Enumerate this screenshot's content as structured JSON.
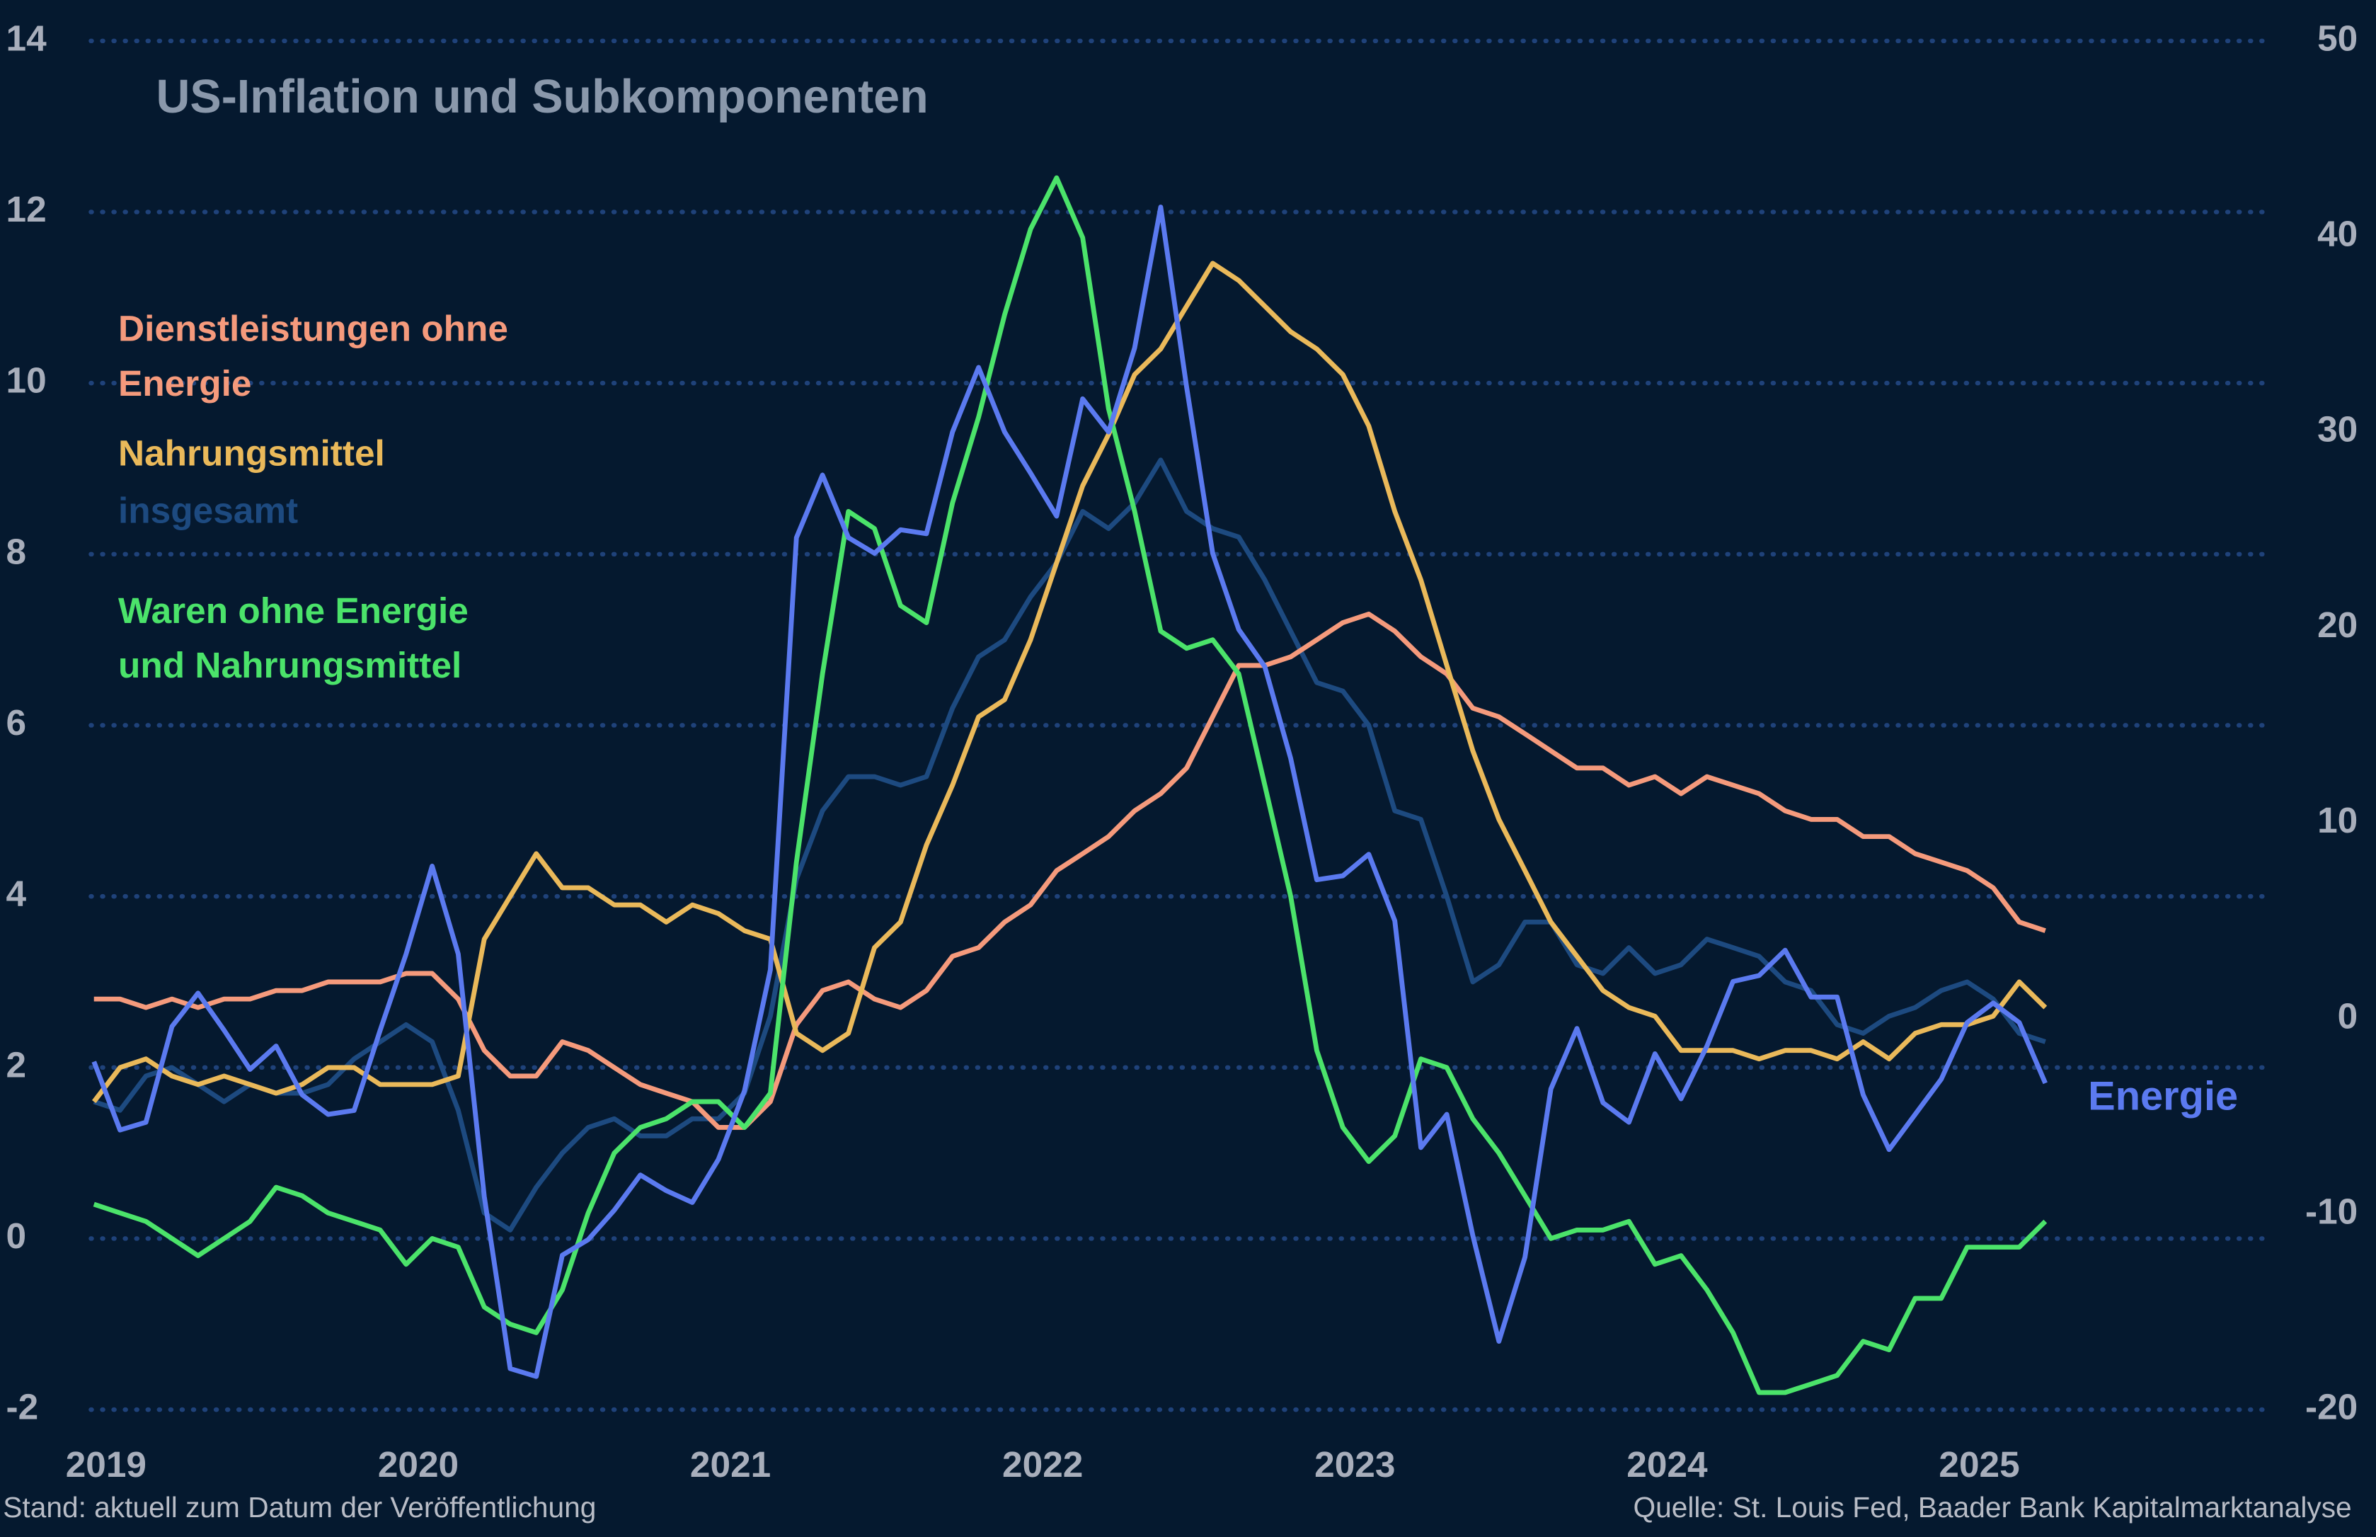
{
  "chart_data": {
    "type": "line",
    "title": "US-Inflation und Subkomponenten",
    "note": "Stand: aktuell zum Datum der Veröffentlichung",
    "source": "Quelle: St. Louis Fed, Baader Bank Kapitalmarktanalyse",
    "categories": [
      "2019",
      null,
      null,
      null,
      null,
      null,
      null,
      null,
      null,
      null,
      null,
      null,
      "2020",
      null,
      null,
      null,
      null,
      null,
      null,
      null,
      null,
      null,
      null,
      null,
      "2021",
      null,
      null,
      null,
      null,
      null,
      null,
      null,
      null,
      null,
      null,
      null,
      "2022",
      null,
      null,
      null,
      null,
      null,
      null,
      null,
      null,
      null,
      null,
      null,
      "2023",
      null,
      null,
      null,
      null,
      null,
      null,
      null,
      null,
      null,
      null,
      null,
      "2024",
      null,
      null,
      null,
      null,
      null,
      null,
      null,
      null,
      null,
      null,
      null,
      "2025",
      null,
      null,
      null
    ],
    "ylim": [
      -2,
      14
    ],
    "yticks": [
      -2,
      0,
      2,
      4,
      6,
      8,
      10,
      12,
      14
    ],
    "y2lim": [
      -20,
      50
    ],
    "y2ticks": [
      -20,
      -10,
      0,
      10,
      20,
      30,
      40,
      50
    ],
    "grid": true,
    "series": [
      {
        "name": "Dienstleistungen ohne Energie",
        "color": "#f59a7c",
        "values": [
          2.8,
          2.8,
          2.7,
          2.8,
          2.7,
          2.8,
          2.8,
          2.9,
          2.9,
          3.0,
          3.0,
          3.0,
          3.1,
          3.1,
          2.8,
          2.2,
          1.9,
          1.9,
          2.3,
          2.2,
          2.0,
          1.8,
          1.7,
          1.6,
          1.3,
          1.3,
          1.6,
          2.5,
          2.9,
          3.0,
          2.8,
          2.7,
          2.9,
          3.3,
          3.4,
          3.7,
          3.9,
          4.3,
          4.5,
          4.7,
          5.0,
          5.2,
          5.5,
          6.1,
          6.7,
          6.7,
          6.8,
          7.0,
          7.2,
          7.3,
          7.1,
          6.8,
          6.6,
          6.2,
          6.1,
          5.9,
          5.7,
          5.5,
          5.5,
          5.3,
          5.4,
          5.2,
          5.4,
          5.3,
          5.2,
          5.0,
          4.9,
          4.9,
          4.7,
          4.7,
          4.5,
          4.4,
          4.3,
          4.1,
          3.7,
          3.6
        ]
      },
      {
        "name": "Nahrungsmittel",
        "color": "#eab95a",
        "values": [
          1.6,
          2.0,
          2.1,
          1.9,
          1.8,
          1.9,
          1.8,
          1.7,
          1.8,
          2.0,
          2.0,
          1.8,
          1.8,
          1.8,
          1.9,
          3.5,
          4.0,
          4.5,
          4.1,
          4.1,
          3.9,
          3.9,
          3.7,
          3.9,
          3.8,
          3.6,
          3.5,
          2.4,
          2.2,
          2.4,
          3.4,
          3.7,
          4.6,
          5.3,
          6.1,
          6.3,
          7.0,
          7.9,
          8.8,
          9.4,
          10.1,
          10.4,
          10.9,
          11.4,
          11.2,
          10.9,
          10.6,
          10.4,
          10.1,
          9.5,
          8.5,
          7.7,
          6.7,
          5.7,
          4.9,
          4.3,
          3.7,
          3.3,
          2.9,
          2.7,
          2.6,
          2.2,
          2.2,
          2.2,
          2.1,
          2.2,
          2.2,
          2.1,
          2.3,
          2.1,
          2.4,
          2.5,
          2.5,
          2.6,
          3.0,
          2.7
        ]
      },
      {
        "name": "insgesamt",
        "color": "#1d4a80",
        "values": [
          1.6,
          1.5,
          1.9,
          2.0,
          1.8,
          1.6,
          1.8,
          1.7,
          1.7,
          1.8,
          2.1,
          2.3,
          2.5,
          2.3,
          1.5,
          0.3,
          0.1,
          0.6,
          1.0,
          1.3,
          1.4,
          1.2,
          1.2,
          1.4,
          1.4,
          1.7,
          2.6,
          4.2,
          5.0,
          5.4,
          5.4,
          5.3,
          5.4,
          6.2,
          6.8,
          7.0,
          7.5,
          7.9,
          8.5,
          8.3,
          8.6,
          9.1,
          8.5,
          8.3,
          8.2,
          7.7,
          7.1,
          6.5,
          6.4,
          6.0,
          5.0,
          4.9,
          4.0,
          3.0,
          3.2,
          3.7,
          3.7,
          3.2,
          3.1,
          3.4,
          3.1,
          3.2,
          3.5,
          3.4,
          3.3,
          3.0,
          2.9,
          2.5,
          2.4,
          2.6,
          2.7,
          2.9,
          3.0,
          2.8,
          2.4,
          2.3
        ]
      },
      {
        "name": "Waren ohne Energie und Nahrungsmittel",
        "color": "#4be36a",
        "values": [
          0.4,
          0.3,
          0.2,
          0.0,
          -0.2,
          0.0,
          0.2,
          0.6,
          0.5,
          0.3,
          0.2,
          0.1,
          -0.3,
          0.0,
          -0.1,
          -0.8,
          -1.0,
          -1.1,
          -0.6,
          0.3,
          1.0,
          1.3,
          1.4,
          1.6,
          1.6,
          1.3,
          1.7,
          4.4,
          6.6,
          8.5,
          8.3,
          7.4,
          7.2,
          8.6,
          9.6,
          10.8,
          11.8,
          12.4,
          11.7,
          9.7,
          8.5,
          7.1,
          6.9,
          7.0,
          6.6,
          5.3,
          4.0,
          2.2,
          1.3,
          0.9,
          1.2,
          2.1,
          2.0,
          1.4,
          1.0,
          0.5,
          0.0,
          0.1,
          0.1,
          0.2,
          -0.3,
          -0.2,
          -0.6,
          -1.1,
          -1.8,
          -1.8,
          -1.7,
          -1.6,
          -1.2,
          -1.3,
          -0.7,
          -0.7,
          -0.1,
          -0.1,
          -0.1,
          0.2
        ]
      },
      {
        "name": "Energie",
        "color": "#5b7af0",
        "axis": "y2",
        "values": [
          -2.2,
          -5.7,
          -5.3,
          -0.4,
          1.3,
          -0.6,
          -2.6,
          -1.4,
          -3.9,
          -4.9,
          -4.7,
          -0.6,
          3.3,
          7.8,
          3.3,
          -9.1,
          -17.9,
          -18.3,
          -12.1,
          -11.3,
          -9.8,
          -8.0,
          -8.8,
          -9.4,
          -7.2,
          -3.7,
          2.5,
          24.6,
          27.8,
          24.6,
          23.8,
          25.0,
          24.8,
          30.0,
          33.3,
          30.0,
          27.9,
          25.7,
          31.7,
          30.0,
          34.3,
          41.5,
          32.3,
          23.8,
          19.9,
          18.0,
          13.3,
          7.1,
          7.3,
          8.4,
          5.0,
          -6.6,
          -4.9,
          -11.1,
          -16.5,
          -12.2,
          -3.6,
          -0.5,
          -4.3,
          -5.3,
          -1.8,
          -4.1,
          -1.4,
          1.9,
          2.2,
          3.5,
          1.1,
          1.1,
          -3.9,
          -6.7,
          -4.9,
          -3.1,
          -0.2,
          0.8,
          -0.2,
          -3.3
        ]
      }
    ]
  }
}
